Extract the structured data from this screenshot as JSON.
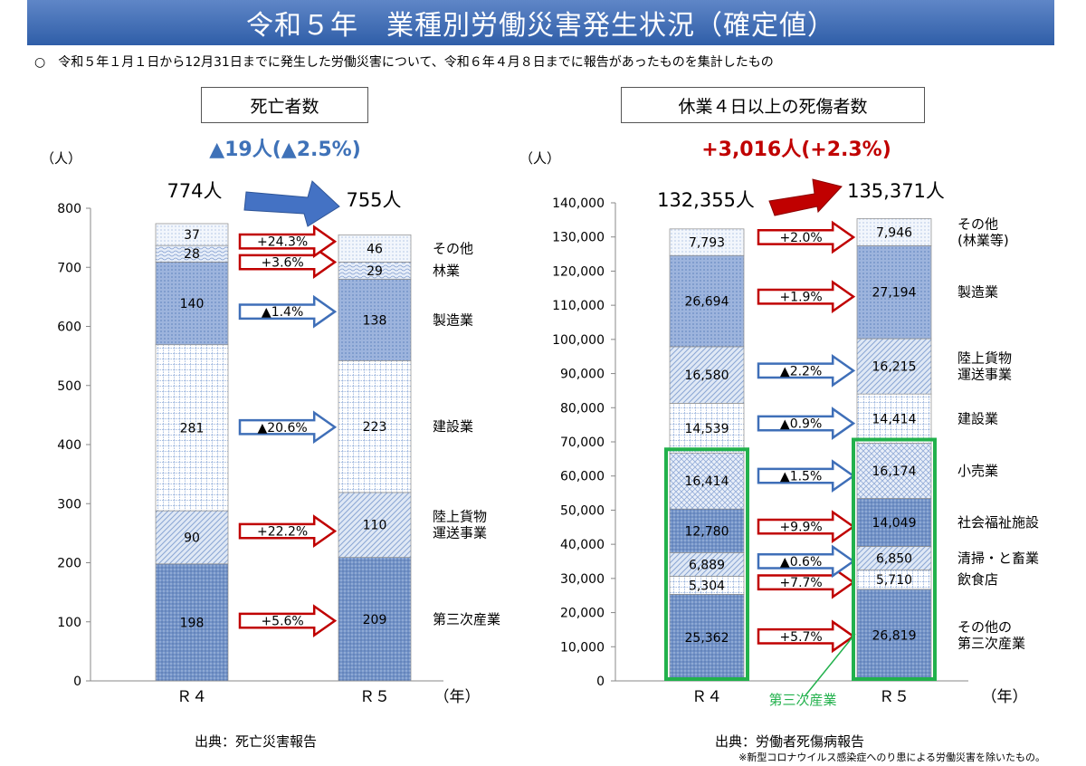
{
  "title": "令和５年　業種別労働災害発生状況（確定値）",
  "note": "○　令和５年１月１日から12月31日までに発生した労働災害について、令和６年４月８日までに報告があったものを集計したもの",
  "colors": {
    "blue_arrow": "#3f6fb8",
    "red_arrow": "#c00000",
    "green_box": "#22b14c",
    "blue_text": "#3f72b8",
    "red_text": "#c00000"
  },
  "left_panel": {
    "header": "死亡者数",
    "change": "▲19人(▲2.5%)",
    "source": "出典：死亡災害報告"
  },
  "right_panel": {
    "header": "休業４日以上の死傷者数",
    "change": "+3,016人(+2.3%)",
    "source": "出典：労働者死傷病報告",
    "footnote": "※新型コロナウイルス感染症へのり患による労働災害を除いたもの。",
    "group_label": "第三次産業"
  },
  "chart_data": [
    {
      "type": "bar",
      "stacked": true,
      "title": "死亡者数",
      "ylabel": "（人）",
      "xlabel": "（年）",
      "ylim": [
        0,
        800
      ],
      "yticks": [
        0,
        100,
        200,
        300,
        400,
        500,
        600,
        700,
        800
      ],
      "categories": [
        "Ｒ４",
        "Ｒ５"
      ],
      "totals": [
        "774人",
        "755人"
      ],
      "series": [
        {
          "name": "第三次産業",
          "values": [
            198,
            209
          ],
          "change": "+5.6%",
          "dir": "up",
          "pattern": "dark"
        },
        {
          "name": "陸上貨物\n運送事業",
          "values": [
            90,
            110
          ],
          "change": "+22.2%",
          "dir": "up",
          "pattern": "diag"
        },
        {
          "name": "建設業",
          "values": [
            281,
            223
          ],
          "change": "▲20.6%",
          "dir": "down",
          "pattern": "grid"
        },
        {
          "name": "製造業",
          "values": [
            140,
            138
          ],
          "change": "▲1.4%",
          "dir": "down",
          "pattern": "dots"
        },
        {
          "name": "林業",
          "values": [
            28,
            29
          ],
          "change": "+3.6%",
          "dir": "up",
          "pattern": "wave"
        },
        {
          "name": "その他",
          "values": [
            37,
            46
          ],
          "change": "+24.3%",
          "dir": "up",
          "pattern": "light"
        }
      ]
    },
    {
      "type": "bar",
      "stacked": true,
      "title": "休業４日以上の死傷者数",
      "ylabel": "（人）",
      "xlabel": "（年）",
      "ylim": [
        0,
        140000
      ],
      "yticks": [
        0,
        10000,
        20000,
        30000,
        40000,
        50000,
        60000,
        70000,
        80000,
        90000,
        100000,
        110000,
        120000,
        130000,
        140000
      ],
      "categories": [
        "Ｒ４",
        "Ｒ５"
      ],
      "totals": [
        "132,355人",
        "135,371人"
      ],
      "series": [
        {
          "name": "その他の\n第三次産業",
          "values": [
            25362,
            26819
          ],
          "change": "+5.7%",
          "dir": "up",
          "pattern": "dark"
        },
        {
          "name": "飲食店",
          "values": [
            5304,
            5710
          ],
          "change": "+7.7%",
          "dir": "up",
          "pattern": "grid"
        },
        {
          "name": "清掃・と畜業",
          "values": [
            6889,
            6850
          ],
          "change": "▲0.6%",
          "dir": "down",
          "pattern": "diag"
        },
        {
          "name": "社会福祉施設",
          "values": [
            12780,
            14049
          ],
          "change": "+9.9%",
          "dir": "up",
          "pattern": "dark"
        },
        {
          "name": "小売業",
          "values": [
            16414,
            16174
          ],
          "change": "▲1.5%",
          "dir": "down",
          "pattern": "cross"
        },
        {
          "name": "建設業",
          "values": [
            14539,
            14414
          ],
          "change": "▲0.9%",
          "dir": "down",
          "pattern": "grid"
        },
        {
          "name": "陸上貨物\n運送事業",
          "values": [
            16580,
            16215
          ],
          "change": "▲2.2%",
          "dir": "down",
          "pattern": "diag"
        },
        {
          "name": "製造業",
          "values": [
            26694,
            27194
          ],
          "change": "+1.9%",
          "dir": "up",
          "pattern": "dots"
        },
        {
          "name": "その他\n(林業等)",
          "values": [
            7793,
            7946
          ],
          "change": "+2.0%",
          "dir": "up",
          "pattern": "light"
        }
      ]
    }
  ]
}
